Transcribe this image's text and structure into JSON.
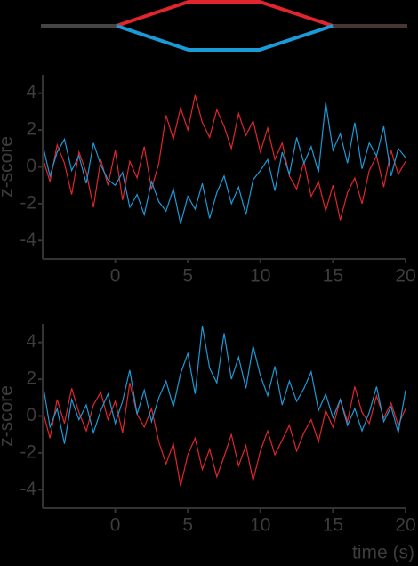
{
  "chart_data": [
    {
      "type": "line",
      "ylabel": "z-score",
      "x": [
        -5,
        -4.5,
        -4,
        -3.5,
        -3,
        -2.5,
        -2,
        -1.5,
        -1,
        -0.5,
        0,
        0.5,
        1,
        1.5,
        2,
        2.5,
        3,
        3.5,
        4,
        4.5,
        5,
        5.5,
        6,
        6.5,
        7,
        7.5,
        8,
        8.5,
        9,
        9.5,
        10,
        10.5,
        11,
        11.5,
        12,
        12.5,
        13,
        13.5,
        14,
        14.5,
        15,
        15.5,
        16,
        16.5,
        17,
        17.5,
        18,
        18.5,
        19,
        19.5,
        20
      ],
      "series": [
        {
          "color": "#e0252e",
          "values": [
            0.5,
            -0.8,
            1.2,
            0.2,
            -1.5,
            0.8,
            -0.3,
            -2.2,
            0.4,
            -1.0,
            0.9,
            -1.8,
            0.3,
            -0.6,
            1.1,
            -1.2,
            0.2,
            2.8,
            1.5,
            3.2,
            2.0,
            3.9,
            2.4,
            1.6,
            3.1,
            2.2,
            1.0,
            2.9,
            1.7,
            2.5,
            0.8,
            2.1,
            0.4,
            1.3,
            -0.5,
            -1.2,
            0.3,
            -1.6,
            -0.8,
            -2.4,
            -1.0,
            -2.9,
            -1.4,
            -0.6,
            -2.0,
            -0.2,
            0.6,
            -1.1,
            0.9,
            -0.4,
            0.3
          ]
        },
        {
          "color": "#1a9ad6",
          "values": [
            1.2,
            -0.5,
            0.8,
            1.5,
            -0.2,
            0.6,
            -0.9,
            1.3,
            0.1,
            -0.7,
            -1.0,
            -0.3,
            -2.2,
            -1.5,
            -2.6,
            -0.8,
            -1.9,
            -2.4,
            -1.2,
            -3.1,
            -1.6,
            -2.3,
            -0.9,
            -2.8,
            -1.4,
            -0.5,
            -2.0,
            -1.1,
            -2.6,
            -0.7,
            -0.2,
            0.4,
            -1.3,
            0.8,
            -0.4,
            1.6,
            0.2,
            1.1,
            -0.3,
            3.5,
            0.9,
            1.8,
            0.2,
            2.4,
            -0.1,
            1.3,
            0.6,
            2.2,
            -0.5,
            1.0,
            0.5
          ]
        }
      ],
      "xlim": [
        -5,
        20
      ],
      "xticks": [
        0,
        5,
        10,
        15,
        20
      ],
      "ylim": [
        -5,
        5
      ],
      "yticks": [
        -4,
        -2,
        0,
        2,
        4
      ]
    },
    {
      "type": "line",
      "ylabel": "z-score",
      "xlabel": "time (s)",
      "x": [
        -5,
        -4.5,
        -4,
        -3.5,
        -3,
        -2.5,
        -2,
        -1.5,
        -1,
        -0.5,
        0,
        0.5,
        1,
        1.5,
        2,
        2.5,
        3,
        3.5,
        4,
        4.5,
        5,
        5.5,
        6,
        6.5,
        7,
        7.5,
        8,
        8.5,
        9,
        9.5,
        10,
        10.5,
        11,
        11.5,
        12,
        12.5,
        13,
        13.5,
        14,
        14.5,
        15,
        15.5,
        16,
        16.5,
        17,
        17.5,
        18,
        18.5,
        19,
        19.5,
        20
      ],
      "series": [
        {
          "color": "#e0252e",
          "values": [
            0.3,
            -1.2,
            0.9,
            -0.4,
            1.5,
            0.2,
            -0.8,
            0.6,
            1.3,
            -0.2,
            0.8,
            -0.9,
            1.8,
            0.1,
            -0.6,
            0.4,
            -1.4,
            -2.6,
            -1.5,
            -3.8,
            -2.1,
            -1.2,
            -2.9,
            -1.8,
            -3.3,
            -2.2,
            -1.0,
            -2.7,
            -1.6,
            -3.5,
            -1.9,
            -0.8,
            -2.1,
            -1.3,
            -0.5,
            -1.9,
            -0.9,
            -0.2,
            -1.4,
            0.3,
            -0.6,
            0.9,
            -0.3,
            1.6,
            0.2,
            -0.4,
            1.1,
            -0.1,
            0.7,
            -0.5,
            0.4
          ]
        },
        {
          "color": "#1a9ad6",
          "values": [
            1.8,
            -0.6,
            0.4,
            -1.5,
            0.9,
            -0.2,
            0.6,
            -0.9,
            0.3,
            1.2,
            -0.4,
            0.8,
            2.5,
            0.1,
            1.4,
            -0.3,
            1.0,
            1.9,
            0.5,
            2.3,
            3.4,
            1.2,
            4.9,
            2.6,
            1.8,
            4.5,
            2.0,
            3.2,
            1.5,
            3.8,
            2.2,
            1.1,
            2.7,
            0.6,
            1.9,
            0.8,
            1.5,
            2.4,
            0.3,
            1.2,
            -0.1,
            0.9,
            -0.5,
            0.4,
            -0.8,
            0.2,
            1.6,
            -0.3,
            0.5,
            -0.9,
            1.4
          ]
        }
      ],
      "xlim": [
        -5,
        20
      ],
      "xticks": [
        0,
        5,
        10,
        15,
        20
      ],
      "ylim": [
        -5,
        5
      ],
      "yticks": [
        -4,
        -2,
        0,
        2,
        4
      ]
    }
  ]
}
